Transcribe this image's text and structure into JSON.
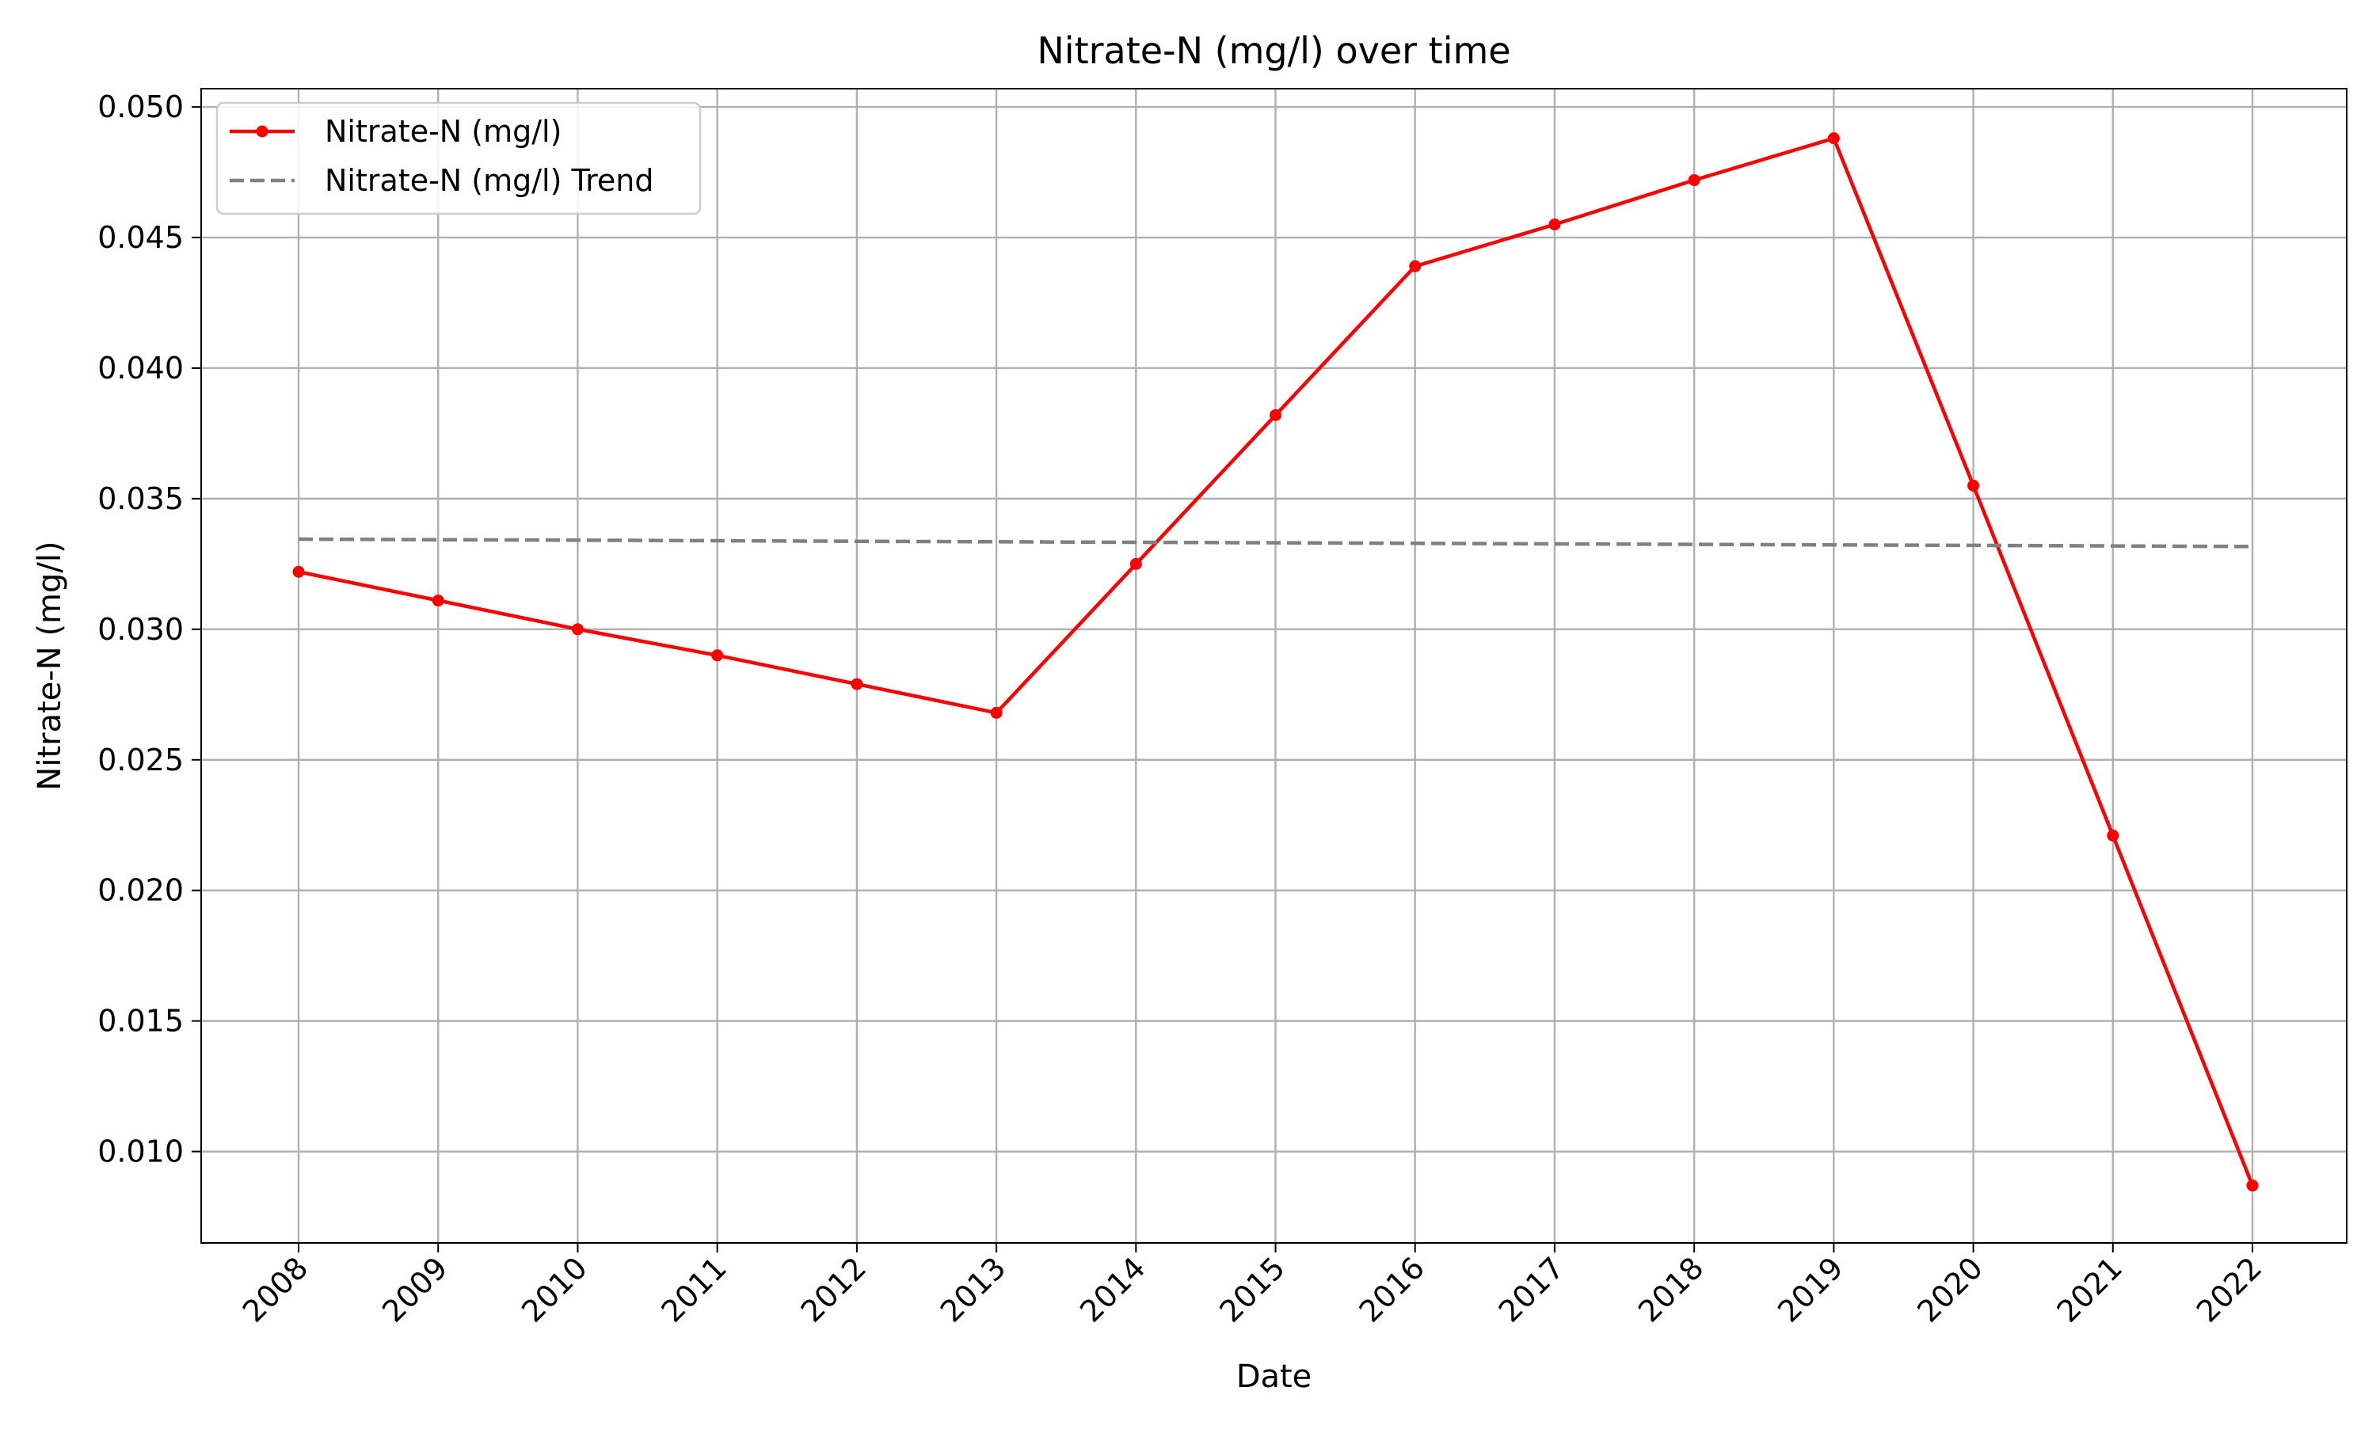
{
  "chart_data": {
    "type": "line",
    "title": "Nitrate-N (mg/l) over time",
    "xlabel": "Date",
    "ylabel": "Nitrate-N (mg/l)",
    "x": [
      "2008",
      "2009",
      "2010",
      "2011",
      "2012",
      "2013",
      "2014",
      "2015",
      "2016",
      "2017",
      "2018",
      "2019",
      "2020",
      "2021",
      "2022"
    ],
    "ylim": [
      0.0065,
      0.0507
    ],
    "yticks": [
      "0.010",
      "0.015",
      "0.020",
      "0.025",
      "0.030",
      "0.035",
      "0.040",
      "0.045",
      "0.050"
    ],
    "grid": true,
    "legend_position": "upper-left",
    "series": [
      {
        "name": "Nitrate-N (mg/l)",
        "style": "solid-with-markers",
        "color": "#ff0000",
        "values": [
          0.0322,
          0.0311,
          0.03,
          0.029,
          0.0279,
          0.0268,
          0.0325,
          0.0382,
          0.0439,
          0.0455,
          0.0472,
          0.0488,
          0.0355,
          0.0221,
          0.0087
        ]
      },
      {
        "name": "Nitrate-N (mg/l) Trend",
        "style": "dashed",
        "color": "#808080",
        "values": [
          0.03345,
          0.03343,
          0.03341,
          0.03339,
          0.03337,
          0.03335,
          0.03333,
          0.03331,
          0.03329,
          0.03327,
          0.03325,
          0.03323,
          0.03321,
          0.03319,
          0.03317
        ]
      }
    ]
  }
}
